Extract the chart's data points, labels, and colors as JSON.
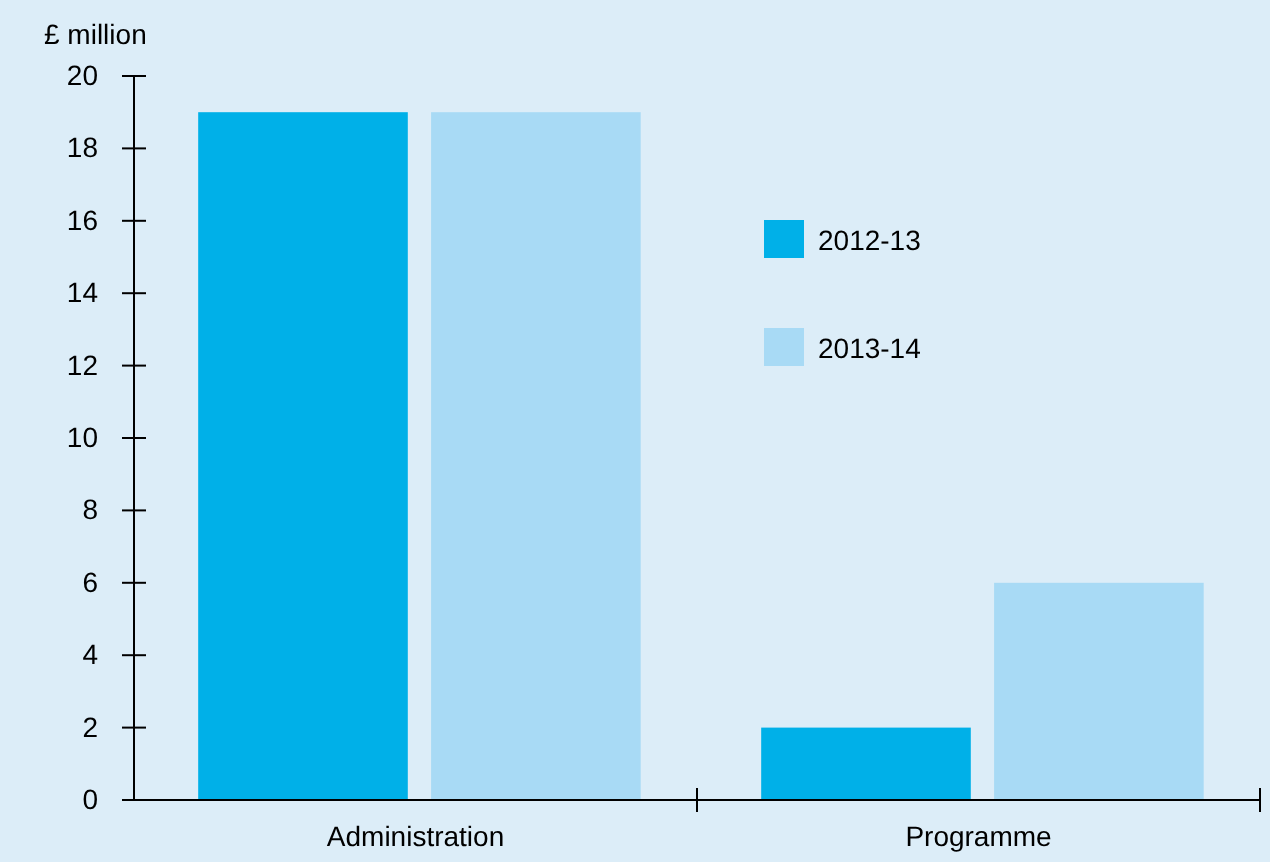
{
  "chart_data": {
    "type": "bar",
    "ylabel": "£ million",
    "categories": [
      "Administration",
      "Programme"
    ],
    "series": [
      {
        "name": "2012-13",
        "color": "#00b0e8",
        "values": [
          19,
          2
        ]
      },
      {
        "name": "2013-14",
        "color": "#a8daf5",
        "values": [
          19,
          6
        ]
      }
    ],
    "ylim": [
      0,
      20
    ],
    "yticks": [
      0,
      2,
      4,
      6,
      8,
      10,
      12,
      14,
      16,
      18,
      20
    ],
    "grid": false,
    "legend": "right"
  }
}
